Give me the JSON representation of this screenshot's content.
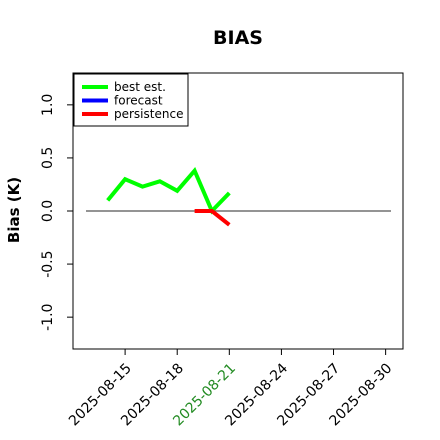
{
  "chart_data": {
    "type": "line",
    "title": "BIAS",
    "xlabel": "",
    "ylabel": "Bias (K)",
    "ylim": [
      -1.3,
      1.3
    ],
    "y_ticks": [
      -1.0,
      -0.5,
      0.0,
      0.5,
      1.0
    ],
    "y_tick_labels": [
      "-1.0",
      "-0.5",
      "0.0",
      "0.5",
      "1.0"
    ],
    "x_range": [
      "2025-08-12",
      "2025-08-31"
    ],
    "x_ticks": [
      "2025-08-15",
      "2025-08-18",
      "2025-08-21",
      "2025-08-24",
      "2025-08-27",
      "2025-08-30"
    ],
    "highlighted_x_tick": "2025-08-21",
    "highlight_color": "#228B22",
    "reference_line_y": 0.0,
    "grid": false,
    "legend_position": "top-left",
    "series": [
      {
        "name": "best est.",
        "color": "#00ff00",
        "x": [
          "2025-08-14",
          "2025-08-15",
          "2025-08-16",
          "2025-08-17",
          "2025-08-18",
          "2025-08-19",
          "2025-08-20",
          "2025-08-21"
        ],
        "y": [
          0.1,
          0.3,
          0.23,
          0.28,
          0.19,
          0.38,
          0.0,
          0.17
        ]
      },
      {
        "name": "forecast",
        "color": "#0000ff",
        "x": [],
        "y": []
      },
      {
        "name": "persistence",
        "color": "#ff0000",
        "x": [
          "2025-08-19",
          "2025-08-20",
          "2025-08-21"
        ],
        "y": [
          0.0,
          0.0,
          -0.13
        ]
      }
    ]
  }
}
